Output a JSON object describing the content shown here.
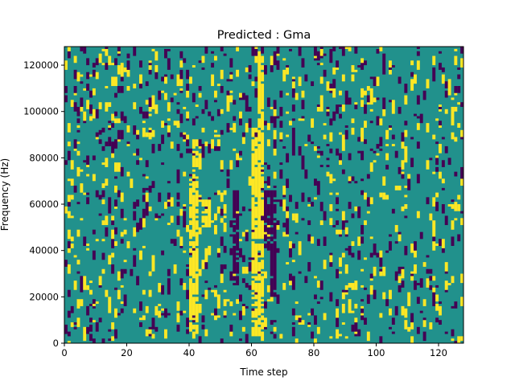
{
  "chart_data": {
    "type": "heatmap",
    "title": "Predicted : Gma",
    "xlabel": "Time step",
    "ylabel": "Frequency (Hz)",
    "xlim": [
      0,
      128
    ],
    "ylim": [
      0,
      128000
    ],
    "x_ticks": [
      0,
      20,
      40,
      60,
      80,
      100,
      120
    ],
    "y_ticks": [
      0,
      20000,
      40000,
      60000,
      80000,
      100000,
      120000
    ],
    "colormap": "viridis",
    "value_levels": [
      -1,
      0,
      1
    ],
    "level_colors": {
      "-1": "#440154",
      "0": "#21918c",
      "1": "#fde725"
    },
    "background_value": 0,
    "grid_shape": {
      "time_steps": 128,
      "frequency_bins": 128
    },
    "frequency_bin_hz": 1000,
    "bands": [
      {
        "value": 1,
        "t_start": 40,
        "t_end": 43,
        "f_start": 4000,
        "f_end": 71000
      },
      {
        "value": 1,
        "t_start": 41,
        "t_end": 43,
        "f_start": 71000,
        "f_end": 88000
      },
      {
        "value": 1,
        "t_start": 44,
        "t_end": 47,
        "f_start": 50000,
        "f_end": 62000
      },
      {
        "value": 1,
        "t_start": 60,
        "t_end": 64,
        "f_start": 3000,
        "f_end": 93000
      },
      {
        "value": 1,
        "t_start": 62,
        "t_end": 64,
        "f_start": 93000,
        "f_end": 124000
      },
      {
        "value": -1,
        "t_start": 64,
        "t_end": 66,
        "f_start": 40000,
        "f_end": 70000
      },
      {
        "value": -1,
        "t_start": 66,
        "t_end": 68,
        "f_start": 20000,
        "f_end": 66000
      },
      {
        "value": -1,
        "t_start": 54,
        "t_end": 56,
        "f_start": 25000,
        "f_end": 66000
      }
    ],
    "scatter_seed": 7,
    "scatter_yellow_density": 0.045,
    "scatter_purple_density": 0.045
  }
}
